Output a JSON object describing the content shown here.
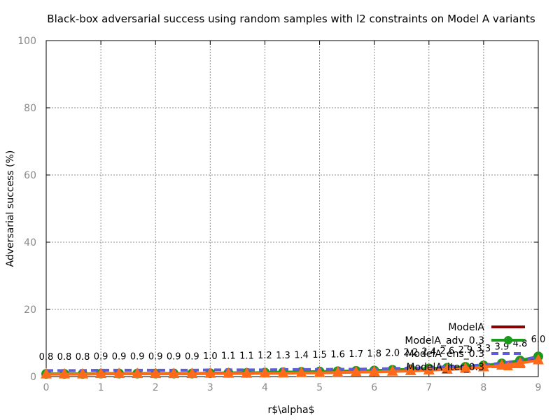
{
  "chart_data": {
    "type": "line",
    "title": "Black-box adversarial success using random samples with l2 constraints on Model A variants",
    "xlabel": "r$\\alpha$",
    "ylabel": "Adversarial success (%)",
    "xlim": [
      0,
      9
    ],
    "ylim": [
      0,
      100
    ],
    "xticks": [
      0,
      1,
      2,
      3,
      4,
      5,
      6,
      7,
      8,
      9
    ],
    "yticks": [
      0,
      20,
      40,
      60,
      80,
      100
    ],
    "grid": true,
    "legend_position": "bottom-right",
    "x": [
      0,
      0.333,
      0.667,
      1,
      1.333,
      1.667,
      2,
      2.333,
      2.667,
      3,
      3.333,
      3.667,
      4,
      4.333,
      4.667,
      5,
      5.333,
      5.667,
      6,
      6.333,
      6.667,
      7,
      7.333,
      7.667,
      8,
      8.333,
      8.667,
      9
    ],
    "series": [
      {
        "name": "ModelA",
        "color": "#8b0000",
        "marker": "none",
        "values": [
          0.8,
          0.8,
          0.8,
          0.9,
          0.9,
          0.9,
          0.9,
          0.9,
          0.9,
          1.0,
          1.1,
          1.1,
          1.2,
          1.3,
          1.4,
          1.4,
          1.5,
          1.6,
          1.7,
          1.9,
          2.1,
          2.3,
          2.5,
          2.8,
          3.2,
          3.8,
          4.6,
          5.5
        ],
        "labels": []
      },
      {
        "name": "ModelA_adv_0.3",
        "color": "#1a9a1a",
        "marker": "circle",
        "values": [
          0.8,
          0.8,
          0.8,
          0.9,
          0.9,
          0.9,
          0.9,
          0.9,
          0.9,
          1.0,
          1.1,
          1.1,
          1.2,
          1.3,
          1.4,
          1.5,
          1.6,
          1.7,
          1.8,
          2.0,
          2.2,
          2.4,
          2.6,
          2.9,
          3.3,
          3.9,
          4.8,
          6.0
        ],
        "labels": [
          "0.8",
          "0.8",
          "0.8",
          "0.9",
          "0.9",
          "0.9",
          "0.9",
          "0.9",
          "0.9",
          "1.0",
          "1.1",
          "1.1",
          "1.2",
          "1.3",
          "1.4",
          "1.5",
          "1.6",
          "1.7",
          "1.8",
          "2.0",
          "2.2",
          "2.4",
          "2.6",
          "2.9",
          "3.3",
          "3.9",
          "4.8",
          "6.0"
        ]
      },
      {
        "name": "ModelA_ens_0.3",
        "color": "#5d5dd8",
        "marker": "none",
        "dashed": true,
        "values": [
          1.8,
          1.8,
          1.8,
          1.9,
          1.9,
          1.9,
          1.9,
          1.9,
          1.9,
          2.0,
          2.0,
          2.0,
          2.0,
          2.1,
          2.1,
          2.1,
          2.2,
          2.2,
          2.3,
          2.4,
          2.5,
          2.7,
          2.9,
          3.1,
          3.5,
          4.0,
          4.8,
          5.9
        ],
        "labels": []
      },
      {
        "name": "ModelA_iter_0.3",
        "color": "#ff6a1a",
        "marker": "triangle",
        "values": [
          0.7,
          0.7,
          0.7,
          0.8,
          0.8,
          0.8,
          0.8,
          0.8,
          0.8,
          0.9,
          0.9,
          0.9,
          1.0,
          1.0,
          1.1,
          1.1,
          1.2,
          1.3,
          1.4,
          1.5,
          1.7,
          1.9,
          2.1,
          2.4,
          2.8,
          3.3,
          4.0,
          4.9
        ],
        "labels": []
      }
    ]
  }
}
